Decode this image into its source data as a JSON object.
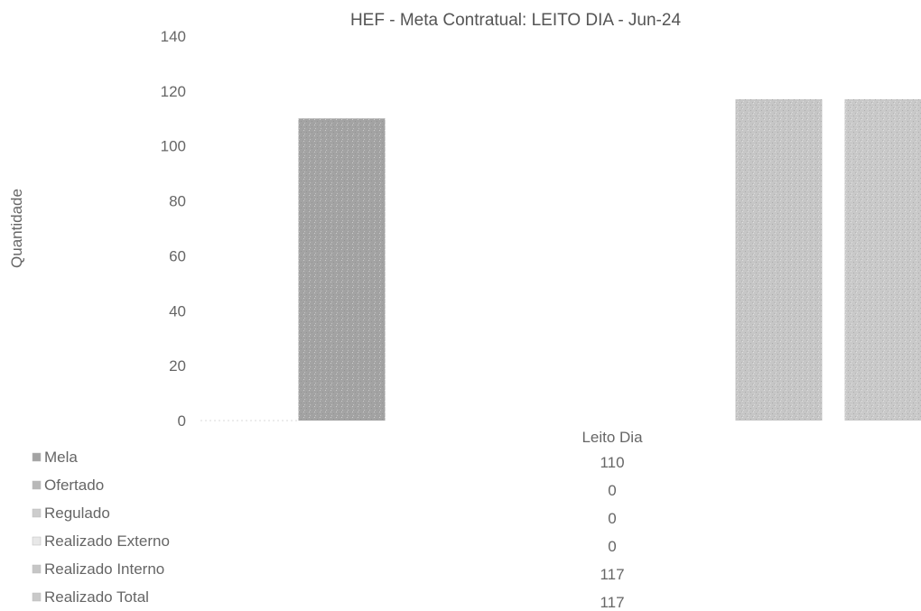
{
  "chart_data": {
    "type": "bar",
    "title": "HEF - Meta Contratual: LEITO DIA - Jun-24",
    "xlabel": "",
    "ylabel": "Quantidade",
    "ylim": [
      0,
      140
    ],
    "yticks": [
      0,
      20,
      40,
      60,
      80,
      100,
      120,
      140
    ],
    "categories": [
      "Leito Dia"
    ],
    "grid": false,
    "legend": "data-table-bottom",
    "series": [
      {
        "name": "Meta",
        "legend_label": "Mela",
        "values": [
          110
        ],
        "display": [
          "110"
        ],
        "color": "#a3a3a3"
      },
      {
        "name": "Ofertado",
        "legend_label": "Ofertado",
        "values": [
          0
        ],
        "display": [
          "0"
        ],
        "color": "#b8b8b8"
      },
      {
        "name": "Regulado",
        "legend_label": "Regulado",
        "values": [
          0
        ],
        "display": [
          "0"
        ],
        "color": "#cdcdcd"
      },
      {
        "name": "Realizado Externo",
        "legend_label": "Realizado Externo",
        "values": [
          0
        ],
        "display": [
          "0"
        ],
        "color": "#e8e8e8"
      },
      {
        "name": "Realizado Interno",
        "legend_label": "Realizado Interno",
        "values": [
          117
        ],
        "display": [
          "117"
        ],
        "color": "#c6c6c6"
      },
      {
        "name": "Realizado Total",
        "legend_label": "Realizado Total",
        "values": [
          117
        ],
        "display": [
          "117"
        ],
        "color": "#c9c9c9"
      }
    ]
  }
}
